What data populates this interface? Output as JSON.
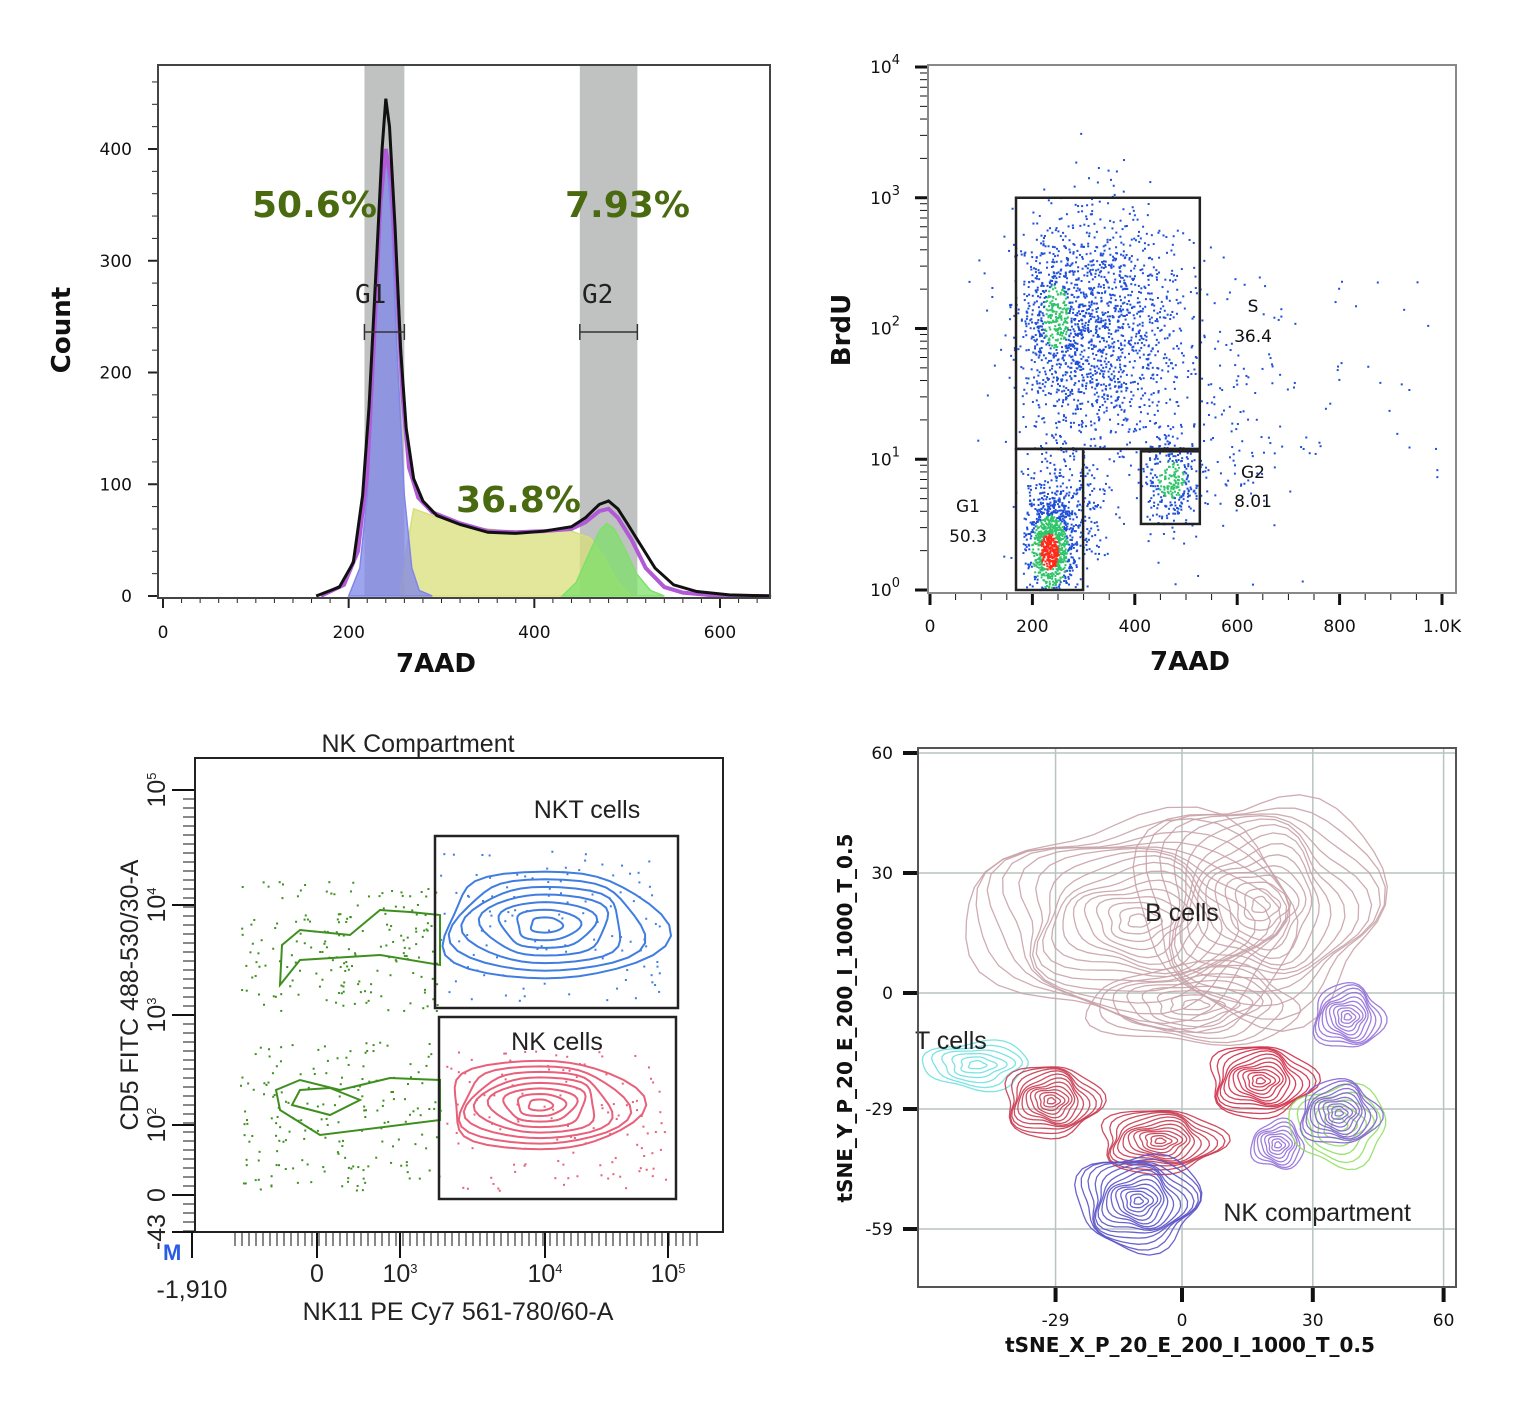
{
  "chart_data": [
    {
      "type": "area",
      "panel": "cell-cycle-histogram",
      "xlabel": "7AAD",
      "ylabel": "Count",
      "xlim": [
        0,
        655
      ],
      "ylim": [
        0,
        475
      ],
      "xticks": [
        0,
        200,
        400,
        600
      ],
      "yticks": [
        0,
        100,
        200,
        300,
        400
      ],
      "gates": [
        {
          "name": "G1",
          "range": [
            217,
            260
          ],
          "percent_label": "50.6%"
        },
        {
          "name": "G2",
          "range": [
            449,
            511
          ],
          "percent_label": "7.93%"
        }
      ],
      "s_phase_label": "36.8%",
      "colors": {
        "total": "#111111",
        "fit": "#b05ad8",
        "G1": "#7f86e8",
        "S": "#d8df7a",
        "G2": "#7ee06a",
        "gate": "#a9aeab",
        "label": "#4a6a10"
      },
      "series": [
        {
          "key": "total",
          "x": [
            165,
            190,
            205,
            215,
            222,
            230,
            236,
            240,
            244,
            250,
            256,
            262,
            270,
            280,
            295,
            320,
            350,
            380,
            410,
            440,
            455,
            470,
            480,
            490,
            500,
            515,
            530,
            550,
            575,
            610,
            655
          ],
          "y": [
            0,
            8,
            30,
            90,
            170,
            300,
            400,
            445,
            420,
            330,
            220,
            150,
            105,
            85,
            72,
            64,
            57,
            56,
            58,
            62,
            70,
            82,
            85,
            78,
            65,
            45,
            25,
            10,
            4,
            1,
            0
          ]
        },
        {
          "key": "fit",
          "x": [
            170,
            195,
            210,
            220,
            228,
            234,
            240,
            246,
            252,
            258,
            265,
            275,
            290,
            320,
            350,
            380,
            410,
            440,
            455,
            470,
            480,
            490,
            505,
            520,
            540,
            560,
            600,
            655
          ],
          "y": [
            0,
            10,
            40,
            110,
            240,
            350,
            400,
            370,
            280,
            180,
            115,
            88,
            75,
            65,
            58,
            57,
            58,
            60,
            66,
            76,
            78,
            70,
            50,
            25,
            8,
            3,
            0,
            0
          ]
        },
        {
          "key": "G1",
          "x": [
            200,
            212,
            220,
            228,
            234,
            240,
            246,
            252,
            260,
            268,
            276,
            290
          ],
          "y": [
            0,
            25,
            90,
            220,
            340,
            400,
            340,
            220,
            90,
            25,
            5,
            0
          ]
        },
        {
          "key": "S",
          "x": [
            255,
            262,
            270,
            290,
            330,
            370,
            410,
            440,
            460,
            475,
            490,
            505
          ],
          "y": [
            0,
            40,
            78,
            72,
            62,
            58,
            58,
            58,
            52,
            35,
            12,
            0
          ]
        },
        {
          "key": "G2",
          "x": [
            430,
            445,
            460,
            470,
            478,
            486,
            496,
            510,
            525,
            540
          ],
          "y": [
            0,
            12,
            40,
            58,
            65,
            60,
            45,
            20,
            5,
            0
          ]
        }
      ]
    },
    {
      "type": "scatter",
      "panel": "brdu-7aad-dotplot",
      "xlabel": "7AAD",
      "ylabel": "BrdU",
      "xlim": [
        0,
        1024
      ],
      "ylim_log10": [
        0,
        4
      ],
      "xticks": [
        "0",
        "200",
        "400",
        "600",
        "800",
        "1.0K"
      ],
      "xtick_values": [
        0,
        200,
        400,
        600,
        800,
        1000
      ],
      "yticks": [
        "10^0",
        "10^1",
        "10^2",
        "10^3",
        "10^4"
      ],
      "gates": [
        {
          "name": "S",
          "value": "36.4",
          "x": [
            168,
            527
          ],
          "y": [
            12,
            1000
          ]
        },
        {
          "name": "G1",
          "value": "50.3",
          "x": [
            168,
            299
          ],
          "y": [
            1,
            12
          ]
        },
        {
          "name": "G2",
          "value": "8.01",
          "x": [
            412,
            527
          ],
          "y": [
            3.2,
            11.5
          ]
        }
      ],
      "colors": {
        "low": "#1f4fd8",
        "mid": "#2fc46a",
        "high": "#ff2a1a"
      }
    },
    {
      "type": "contour",
      "panel": "nk-compartment",
      "title": "NK Compartment",
      "xlabel": "NK11 PE Cy7 561-780/60-A",
      "ylabel": "CD5 FITC 488-530/30-A",
      "xticks": [
        "-1,910",
        "0",
        "10^3",
        "10^4",
        "10^5"
      ],
      "yticks": [
        "-43",
        "0",
        "10^2",
        "10^3",
        "10^4",
        "10^5"
      ],
      "gates": [
        {
          "name": "NKT cells",
          "color": "#3f7de0"
        },
        {
          "name": "NK cells",
          "color": "#e8607a"
        }
      ],
      "negative_color": "#3f8f1f",
      "axis_marker": "M"
    },
    {
      "type": "contour",
      "panel": "tsne-map",
      "xlabel": "tSNE_X_P_20_E_200_I_1000_T_0.5",
      "ylabel": "tSNE_Y_P_20_E_200_I_1000_T_0.5",
      "xlim": [
        -59,
        62
      ],
      "ylim": [
        -68,
        62
      ],
      "xticks": [
        -29,
        0,
        30,
        60
      ],
      "yticks": [
        60,
        30,
        0,
        -29,
        -59
      ],
      "grid": true,
      "annotations": [
        {
          "text": "B cells",
          "x": 0,
          "y": 18
        },
        {
          "text": "T cells",
          "x": -53,
          "y": -14
        },
        {
          "text": "NK compartment",
          "x": 31,
          "y": -57
        }
      ],
      "clusters": [
        {
          "color": "#c9a3a8",
          "cx": -10,
          "cy": 18,
          "rx": 38,
          "ry": 26,
          "levels": 16
        },
        {
          "color": "#c9a3a8",
          "cx": 18,
          "cy": 22,
          "rx": 28,
          "ry": 28,
          "levels": 14
        },
        {
          "color": "#c9a3a8",
          "cx": 3,
          "cy": -3,
          "rx": 24,
          "ry": 10,
          "levels": 8
        },
        {
          "color": "#6fe0e0",
          "cx": -47,
          "cy": -18,
          "rx": 12,
          "ry": 6,
          "levels": 6
        },
        {
          "color": "#c83a50",
          "cx": -30,
          "cy": -27,
          "rx": 11,
          "ry": 9,
          "levels": 12
        },
        {
          "color": "#c83a50",
          "cx": -5,
          "cy": -37,
          "rx": 14,
          "ry": 8,
          "levels": 12
        },
        {
          "color": "#d02c48",
          "cx": 18,
          "cy": -22,
          "rx": 12,
          "ry": 9,
          "levels": 12
        },
        {
          "color": "#9470d8",
          "cx": 38,
          "cy": -6,
          "rx": 8,
          "ry": 8,
          "levels": 10
        },
        {
          "color": "#9470d8",
          "cx": 22,
          "cy": -38,
          "rx": 6,
          "ry": 6,
          "levels": 8
        },
        {
          "color": "#8fe060",
          "cx": 36,
          "cy": -33,
          "rx": 11,
          "ry": 10,
          "levels": 6
        },
        {
          "color": "#8062d0",
          "cx": 36,
          "cy": -30,
          "rx": 9,
          "ry": 8,
          "levels": 10
        },
        {
          "color": "#5a52c8",
          "cx": -10,
          "cy": -52,
          "rx": 14,
          "ry": 12,
          "levels": 14
        }
      ]
    }
  ]
}
